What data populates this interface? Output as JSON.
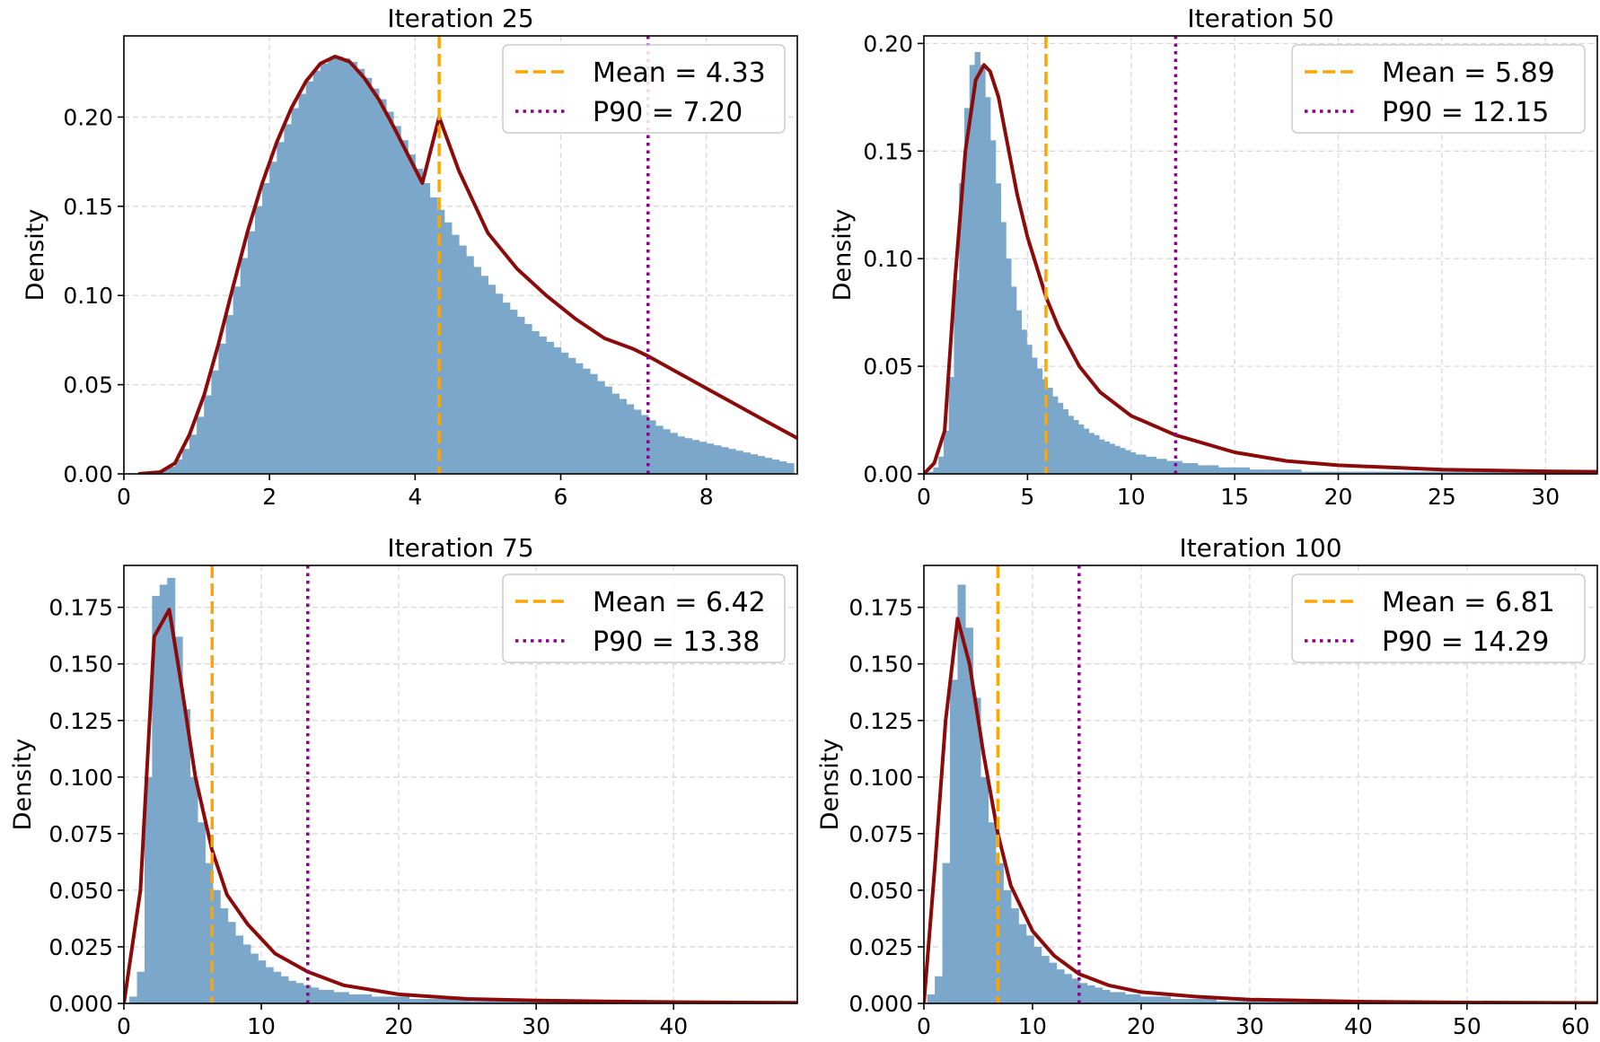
{
  "colors": {
    "hist_fill": "#7ba7cb",
    "kde_line": "#8b0a0a",
    "mean_line": "#ffa500",
    "p90_line": "#8b008b",
    "grid": "#d9d9d9",
    "axes": "#000000"
  },
  "chart_data": [
    {
      "type": "histogram",
      "title": "Iteration 25",
      "xlabel": "",
      "ylabel": "Density",
      "xlim": [
        0,
        9.25
      ],
      "ylim": [
        0,
        0.2455
      ],
      "xticks": [
        0,
        2,
        4,
        6,
        8
      ],
      "xtick_labels": [
        "0",
        "2",
        "4",
        "6",
        "8"
      ],
      "yticks": [
        0,
        0.05,
        0.1,
        0.15,
        0.2
      ],
      "ytick_labels": [
        "0.00",
        "0.05",
        "0.10",
        "0.15",
        "0.20"
      ],
      "grid": true,
      "legend_position": "top-right",
      "hist": {
        "bin_start": 0.2,
        "bin_width": 0.1,
        "values": [
          0.001,
          0.001,
          0.001,
          0.002,
          0.004,
          0.008,
          0.014,
          0.022,
          0.032,
          0.044,
          0.058,
          0.073,
          0.089,
          0.105,
          0.121,
          0.136,
          0.15,
          0.163,
          0.175,
          0.186,
          0.196,
          0.205,
          0.213,
          0.22,
          0.226,
          0.23,
          0.233,
          0.234,
          0.233,
          0.231,
          0.227,
          0.222,
          0.216,
          0.21,
          0.203,
          0.195,
          0.187,
          0.179,
          0.171,
          0.163,
          0.155,
          0.148,
          0.141,
          0.134,
          0.128,
          0.122,
          0.116,
          0.111,
          0.106,
          0.101,
          0.096,
          0.092,
          0.088,
          0.084,
          0.08,
          0.077,
          0.074,
          0.071,
          0.068,
          0.065,
          0.062,
          0.059,
          0.056,
          0.052,
          0.049,
          0.045,
          0.042,
          0.039,
          0.036,
          0.033,
          0.03,
          0.027,
          0.025,
          0.023,
          0.021,
          0.02,
          0.019,
          0.018,
          0.017,
          0.016,
          0.015,
          0.014,
          0.013,
          0.012,
          0.011,
          0.01,
          0.009,
          0.008,
          0.007,
          0.006
        ]
      },
      "kde": {
        "x": [
          0.2,
          0.5,
          0.7,
          0.9,
          1.1,
          1.3,
          1.5,
          1.7,
          1.9,
          2.1,
          2.3,
          2.5,
          2.7,
          2.9,
          3.1,
          3.3,
          3.5,
          3.7,
          3.9,
          4.1,
          4.33,
          4.6,
          5.0,
          5.4,
          5.8,
          6.2,
          6.6,
          7.0,
          7.2,
          7.6,
          8.0,
          8.4,
          8.8,
          9.25
        ],
        "y": [
          0.0,
          0.001,
          0.006,
          0.022,
          0.044,
          0.073,
          0.105,
          0.136,
          0.163,
          0.186,
          0.205,
          0.22,
          0.23,
          0.234,
          0.231,
          0.222,
          0.21,
          0.195,
          0.179,
          0.163,
          0.2,
          0.17,
          0.135,
          0.115,
          0.1,
          0.087,
          0.076,
          0.07,
          0.066,
          0.057,
          0.048,
          0.039,
          0.03,
          0.02
        ]
      },
      "mean": 4.33,
      "p90": 7.2,
      "legend": [
        "Mean = 4.33",
        "P90 = 7.20"
      ]
    },
    {
      "type": "histogram",
      "title": "Iteration 50",
      "xlabel": "",
      "ylabel": "Density",
      "xlim": [
        0,
        32.5
      ],
      "ylim": [
        0,
        0.2035
      ],
      "xticks": [
        0,
        5,
        10,
        15,
        20,
        25,
        30
      ],
      "xtick_labels": [
        "0",
        "5",
        "10",
        "15",
        "20",
        "25",
        "30"
      ],
      "yticks": [
        0,
        0.05,
        0.1,
        0.15,
        0.2
      ],
      "ytick_labels": [
        "0.00",
        "0.05",
        "0.10",
        "0.15",
        "0.20"
      ],
      "grid": true,
      "legend_position": "top-right",
      "hist": {
        "bin_start": 0.2,
        "bin_width": 0.25,
        "values": [
          0.001,
          0.003,
          0.008,
          0.02,
          0.045,
          0.09,
          0.135,
          0.17,
          0.19,
          0.196,
          0.19,
          0.175,
          0.155,
          0.135,
          0.117,
          0.1,
          0.087,
          0.076,
          0.067,
          0.06,
          0.054,
          0.049,
          0.044,
          0.04,
          0.036,
          0.033,
          0.03,
          0.027,
          0.025,
          0.023,
          0.021,
          0.019,
          0.018,
          0.016,
          0.015,
          0.014,
          0.013,
          0.012,
          0.011,
          0.01,
          0.009,
          0.009,
          0.008,
          0.008,
          0.007,
          0.007,
          0.006,
          0.006,
          0.006,
          0.005,
          0.005,
          0.005,
          0.004,
          0.004,
          0.004,
          0.004,
          0.003,
          0.003,
          0.003,
          0.003,
          0.003,
          0.003,
          0.002,
          0.002,
          0.002,
          0.002,
          0.002,
          0.002,
          0.002,
          0.002,
          0.002,
          0.002,
          0.001,
          0.001,
          0.001,
          0.001,
          0.001,
          0.001,
          0.001,
          0.001,
          0.001,
          0.001,
          0.001,
          0.001,
          0.001,
          0.001,
          0.001,
          0.001,
          0.001,
          0.001,
          0.001,
          0.001,
          0.001,
          0.001,
          0.001,
          0.001,
          0.001,
          0.001,
          0.001,
          0.001,
          0.001,
          0.001,
          0.001,
          0.001,
          0.001,
          0.001,
          0.001,
          0.001,
          0.001,
          0.001,
          0.001,
          0.001,
          0.001,
          0.001,
          0.001,
          0.001,
          0.001,
          0.001,
          0.001,
          0.001,
          0.001,
          0.001,
          0.001,
          0.001,
          0.001,
          0.001,
          0.001
        ]
      },
      "kde": {
        "x": [
          0,
          0.5,
          1.0,
          1.5,
          2.0,
          2.5,
          2.9,
          3.2,
          3.6,
          4.0,
          4.5,
          5.0,
          5.9,
          6.5,
          7.5,
          8.5,
          10,
          12.15,
          15,
          17.5,
          20,
          25,
          30,
          32.5
        ],
        "y": [
          0.0,
          0.005,
          0.02,
          0.09,
          0.15,
          0.183,
          0.19,
          0.187,
          0.175,
          0.155,
          0.13,
          0.11,
          0.082,
          0.068,
          0.05,
          0.038,
          0.027,
          0.018,
          0.01,
          0.006,
          0.004,
          0.002,
          0.0012,
          0.001
        ]
      },
      "mean": 5.89,
      "p90": 12.15,
      "legend": [
        "Mean = 5.89",
        "P90 = 12.15"
      ]
    },
    {
      "type": "histogram",
      "title": "Iteration 75",
      "xlabel": "",
      "ylabel": "Density",
      "xlim": [
        0,
        49
      ],
      "ylim": [
        0,
        0.1935
      ],
      "xticks": [
        0,
        10,
        20,
        30,
        40
      ],
      "xtick_labels": [
        "0",
        "10",
        "20",
        "30",
        "40"
      ],
      "yticks": [
        0,
        0.025,
        0.05,
        0.075,
        0.1,
        0.125,
        0.15,
        0.175
      ],
      "ytick_labels": [
        "0.000",
        "0.025",
        "0.050",
        "0.075",
        "0.100",
        "0.125",
        "0.150",
        "0.175"
      ],
      "grid": true,
      "legend_position": "top-right",
      "hist": {
        "bin_start": 0.4,
        "bin_width": 0.55,
        "values": [
          0.003,
          0.014,
          0.1,
          0.18,
          0.185,
          0.188,
          0.162,
          0.13,
          0.1,
          0.08,
          0.062,
          0.05,
          0.042,
          0.036,
          0.03,
          0.026,
          0.022,
          0.019,
          0.016,
          0.014,
          0.012,
          0.01,
          0.009,
          0.008,
          0.007,
          0.006,
          0.006,
          0.005,
          0.005,
          0.004,
          0.004,
          0.004,
          0.003,
          0.003,
          0.003,
          0.003,
          0.003,
          0.002,
          0.002,
          0.002,
          0.002,
          0.002,
          0.002,
          0.002,
          0.002,
          0.001,
          0.001,
          0.001,
          0.001,
          0.001,
          0.001,
          0.001,
          0.001,
          0.001,
          0.001,
          0.001,
          0.001,
          0.001,
          0.001,
          0.001,
          0.001,
          0.001,
          0.001,
          0.001,
          0.001,
          0.001,
          0.001,
          0.001,
          0.001,
          0.001,
          0.001,
          0.001,
          0.001,
          0.001,
          0.001,
          0.001,
          0.001,
          0.001,
          0.001,
          0.001,
          0.001,
          0.001,
          0.001,
          0.001,
          0.001,
          0.001,
          0.001,
          0.001
        ]
      },
      "kde": {
        "x": [
          0,
          1.2,
          2.2,
          3.3,
          4.2,
          5.2,
          6.4,
          7.5,
          9,
          11,
          13.38,
          16,
          20,
          25,
          30,
          35,
          40,
          45,
          49
        ],
        "y": [
          0.0,
          0.05,
          0.162,
          0.174,
          0.14,
          0.1,
          0.068,
          0.048,
          0.035,
          0.022,
          0.014,
          0.008,
          0.004,
          0.002,
          0.0013,
          0.0009,
          0.0006,
          0.0004,
          0.0003
        ]
      },
      "mean": 6.42,
      "p90": 13.38,
      "legend": [
        "Mean = 6.42",
        "P90 = 13.38"
      ]
    },
    {
      "type": "histogram",
      "title": "Iteration 100",
      "xlabel": "",
      "ylabel": "Density",
      "xlim": [
        0,
        62
      ],
      "ylim": [
        0,
        0.1935
      ],
      "xticks": [
        0,
        10,
        20,
        30,
        40,
        50,
        60
      ],
      "xtick_labels": [
        "0",
        "10",
        "20",
        "30",
        "40",
        "50",
        "60"
      ],
      "yticks": [
        0,
        0.025,
        0.05,
        0.075,
        0.1,
        0.125,
        0.15,
        0.175
      ],
      "ytick_labels": [
        "0.000",
        "0.025",
        "0.050",
        "0.075",
        "0.100",
        "0.125",
        "0.150",
        "0.175"
      ],
      "grid": true,
      "legend_position": "top-right",
      "hist": {
        "bin_start": 0.3,
        "bin_width": 0.7,
        "values": [
          0.004,
          0.012,
          0.062,
          0.143,
          0.185,
          0.166,
          0.135,
          0.1,
          0.08,
          0.062,
          0.05,
          0.042,
          0.035,
          0.03,
          0.025,
          0.021,
          0.018,
          0.015,
          0.013,
          0.011,
          0.009,
          0.008,
          0.007,
          0.006,
          0.005,
          0.005,
          0.004,
          0.004,
          0.003,
          0.003,
          0.003,
          0.003,
          0.002,
          0.002,
          0.002,
          0.002,
          0.002,
          0.002,
          0.001,
          0.001,
          0.001,
          0.001,
          0.001,
          0.001,
          0.001,
          0.001,
          0.001,
          0.001,
          0.001,
          0.001,
          0.001,
          0.001,
          0.001,
          0.001,
          0.001,
          0.001,
          0.001,
          0.001,
          0.001,
          0.001,
          0.001,
          0.001,
          0.001,
          0.001,
          0.001,
          0.001,
          0.001,
          0.001,
          0.001,
          0.001,
          0.001,
          0.001,
          0.001,
          0.001,
          0.001,
          0.001,
          0.001,
          0.001,
          0.001,
          0.001,
          0.001,
          0.001,
          0.001,
          0.001,
          0.001
        ]
      },
      "kde": {
        "x": [
          0,
          1.0,
          2.0,
          3.1,
          4.2,
          5.5,
          6.81,
          8,
          10,
          12,
          14.29,
          17,
          20,
          25,
          30,
          40,
          50,
          62
        ],
        "y": [
          0.0,
          0.06,
          0.125,
          0.17,
          0.15,
          0.11,
          0.075,
          0.052,
          0.032,
          0.021,
          0.013,
          0.008,
          0.005,
          0.003,
          0.0017,
          0.0008,
          0.0004,
          0.0002
        ]
      },
      "mean": 6.81,
      "p90": 14.29,
      "legend": [
        "Mean = 6.81",
        "P90 = 14.29"
      ]
    }
  ]
}
